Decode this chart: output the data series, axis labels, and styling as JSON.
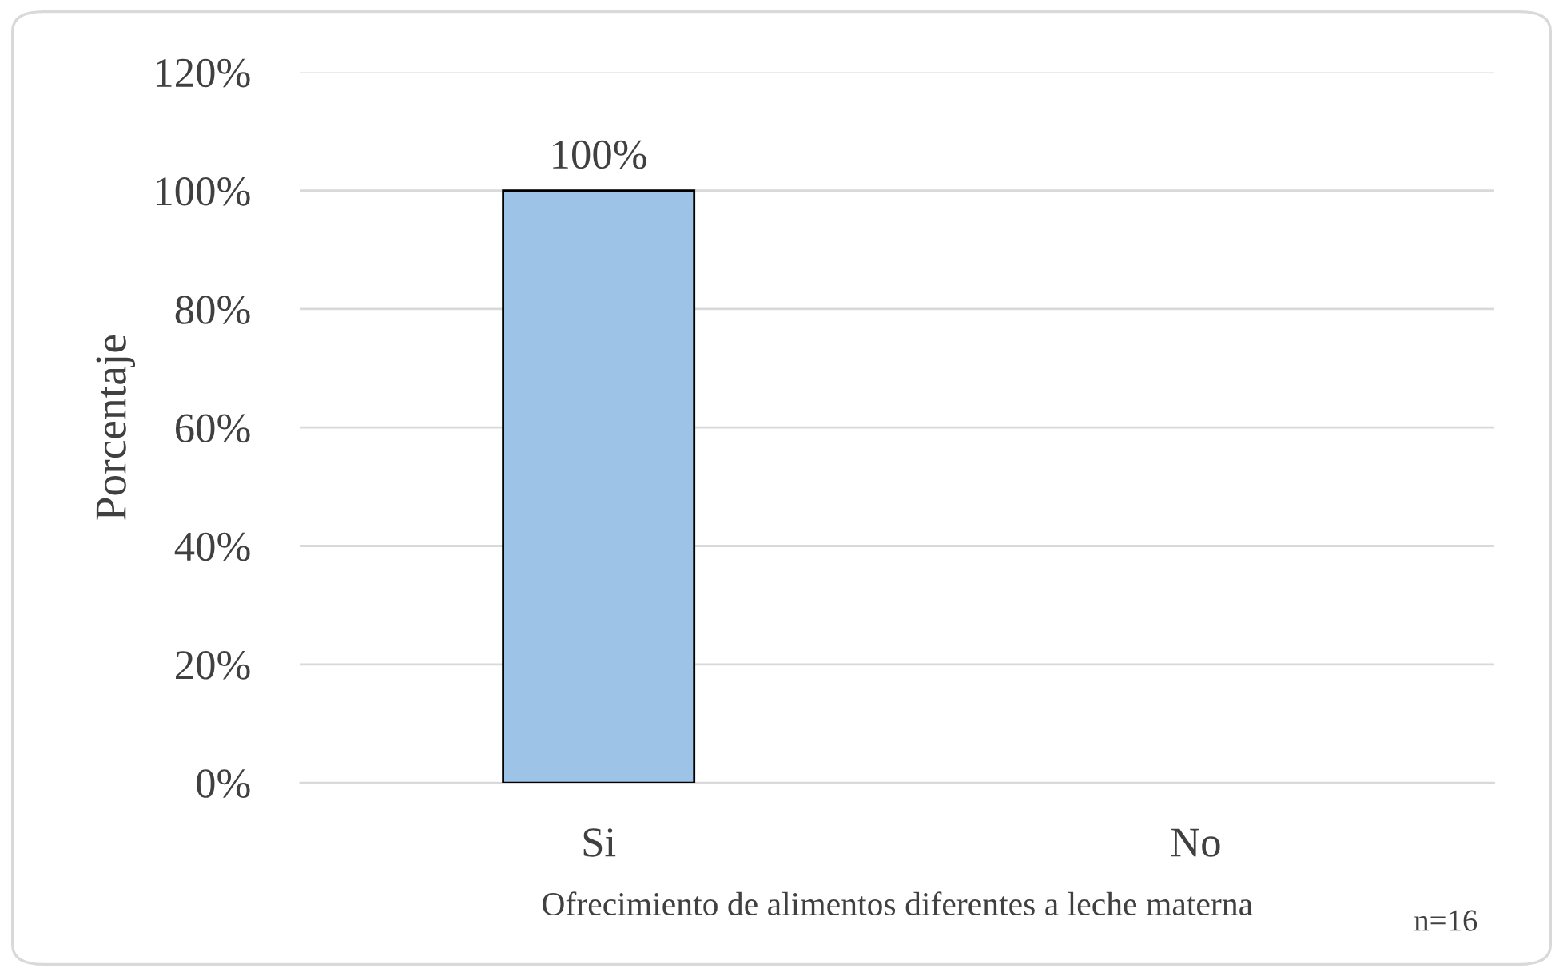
{
  "chart_data": {
    "type": "bar",
    "xlabel": "Ofrecimiento de alimentos diferentes a leche materna",
    "ylabel": "Porcentaje",
    "categories": [
      "Si",
      "No"
    ],
    "values": [
      100,
      0
    ],
    "value_labels": [
      "100%",
      null
    ],
    "color": "#9dc3e6",
    "ylim": [
      0,
      120
    ],
    "yticks": [
      {
        "value": 0,
        "label": "0%"
      },
      {
        "value": 20,
        "label": "20%"
      },
      {
        "value": 40,
        "label": "40%"
      },
      {
        "value": 60,
        "label": "60%"
      },
      {
        "value": 80,
        "label": "80%"
      },
      {
        "value": 100,
        "label": "100%"
      },
      {
        "value": 120,
        "label": "120%"
      }
    ],
    "grid": "y",
    "annotations": [
      "n=16"
    ]
  }
}
